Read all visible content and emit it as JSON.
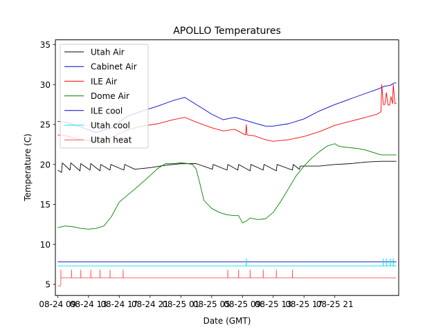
{
  "chart_data": {
    "type": "line",
    "title": "APOLLO Temperatures",
    "xlabel": "Date (GMT)",
    "ylabel": "Temperature (C)",
    "xlim": [
      -0.3,
      44.3
    ],
    "ylim": [
      3.6,
      35.6
    ],
    "grid": false,
    "legend_position": "top-left",
    "x_unit": "hours since 08-24 09:00",
    "x_ticks": [
      {
        "pos": 0,
        "label": "08-24 09"
      },
      {
        "pos": 4,
        "label": "08-24 13"
      },
      {
        "pos": 8,
        "label": "08-24 17"
      },
      {
        "pos": 12,
        "label": "08-24 21"
      },
      {
        "pos": 16,
        "label": "08-25 01"
      },
      {
        "pos": 20,
        "label": "08-25 05"
      },
      {
        "pos": 24,
        "label": "08-25 09"
      },
      {
        "pos": 28,
        "label": "08-25 13"
      },
      {
        "pos": 32,
        "label": "08-25 17"
      },
      {
        "pos": 36,
        "label": "08-25 21"
      }
    ],
    "y_ticks": [
      5,
      10,
      15,
      20,
      25,
      30,
      35
    ],
    "series": [
      {
        "name": "Utah Air",
        "color": "#000000",
        "x": [
          0,
          0.5,
          0.6,
          1.6,
          1.7,
          2.9,
          3.0,
          4.2,
          4.3,
          5.5,
          5.6,
          6.8,
          6.9,
          8.6,
          8.7,
          10,
          12,
          14,
          16,
          18,
          20.1,
          20.2,
          22,
          22.1,
          23.4,
          23.5,
          25,
          25.1,
          26.7,
          26.8,
          28.4,
          28.5,
          30.5,
          30.6,
          31.4,
          31.5,
          34,
          36,
          38,
          40,
          42,
          44
        ],
        "y": [
          19.3,
          19.0,
          20.2,
          19.3,
          20.2,
          19.2,
          20.1,
          19.3,
          20.1,
          19.2,
          20.0,
          19.3,
          20.0,
          19.3,
          20.0,
          19.4,
          19.6,
          19.9,
          20.1,
          20.1,
          19.4,
          20.0,
          19.3,
          20.0,
          19.3,
          20.0,
          19.2,
          20.0,
          19.3,
          20.0,
          19.2,
          20.0,
          19.3,
          20.0,
          19.4,
          19.8,
          19.8,
          20.0,
          20.1,
          20.3,
          20.4,
          20.4
        ]
      },
      {
        "name": "Cabinet Air",
        "color": "#0000cc",
        "x": [
          0,
          1,
          3,
          5,
          7,
          9,
          11,
          13,
          15,
          16.5,
          18,
          20,
          21.5,
          23,
          24.5,
          25.5,
          27,
          28,
          30,
          32,
          34,
          36,
          38,
          40,
          41.5,
          42.5,
          43.2,
          43.7,
          44
        ],
        "y": [
          25.4,
          25.3,
          24.7,
          24.0,
          24.6,
          26.0,
          26.7,
          27.3,
          28.0,
          28.4,
          27.5,
          26.3,
          25.6,
          25.9,
          25.5,
          25.2,
          24.8,
          24.8,
          25.1,
          25.7,
          26.7,
          27.5,
          28.2,
          28.9,
          29.4,
          29.8,
          29.9,
          30.2,
          30.2
        ]
      },
      {
        "name": "ILE Air",
        "color": "#ff0000",
        "x": [
          0,
          1,
          3,
          5,
          7,
          9,
          11,
          13,
          15,
          16.5,
          18,
          20,
          21.5,
          23,
          24.4,
          24.5,
          24.6,
          25.5,
          27,
          28,
          30,
          32,
          34,
          36,
          38,
          40,
          41.5,
          42.0,
          42.1,
          42.3,
          42.5,
          42.7,
          42.9,
          43.1,
          43.3,
          43.5,
          43.6,
          43.8,
          44
        ],
        "y": [
          23.7,
          23.6,
          23.1,
          22.9,
          23.4,
          24.3,
          24.8,
          25.1,
          25.6,
          25.9,
          25.3,
          24.6,
          24.2,
          24.4,
          23.7,
          25.0,
          23.7,
          23.6,
          23.1,
          22.9,
          23.1,
          23.5,
          24.1,
          24.9,
          25.4,
          25.9,
          26.3,
          26.6,
          30.0,
          27.5,
          27.5,
          29.0,
          27.5,
          27.4,
          28.5,
          27.6,
          30.0,
          27.6,
          27.7
        ]
      },
      {
        "name": "Dome Air",
        "color": "#008000",
        "x": [
          0,
          1,
          2,
          3,
          4,
          5,
          6,
          7,
          8,
          10,
          12,
          13,
          14,
          15,
          16,
          17,
          17.5,
          18,
          18.5,
          19,
          20,
          21,
          22,
          23,
          23.5,
          24,
          24.5,
          25,
          26,
          27,
          28,
          29,
          30,
          31,
          32,
          33,
          34,
          35,
          36,
          36.5,
          37,
          38,
          39,
          40,
          41,
          42,
          43,
          44
        ],
        "y": [
          12.1,
          12.3,
          12.2,
          12.0,
          11.9,
          12.0,
          12.3,
          13.5,
          15.3,
          16.9,
          18.6,
          19.5,
          20.1,
          20.1,
          20.2,
          20.1,
          20.0,
          19.4,
          17.5,
          15.5,
          14.5,
          14.0,
          13.7,
          13.6,
          13.6,
          12.7,
          12.9,
          13.3,
          13.1,
          13.2,
          14.0,
          15.4,
          17.0,
          18.6,
          19.8,
          20.8,
          21.6,
          22.3,
          22.6,
          22.3,
          22.2,
          22.1,
          22.0,
          21.8,
          21.5,
          21.2,
          21.2,
          21.2
        ]
      },
      {
        "name": "ILE cool",
        "color": "#0000cc",
        "x": [
          0,
          44
        ],
        "y": [
          7.8,
          7.8
        ]
      },
      {
        "name": "Utah cool",
        "color": "#00e5ee",
        "x": [
          0,
          24.49,
          24.5,
          24.51,
          24.52,
          42.29,
          42.3,
          42.31,
          42.32,
          42.69,
          42.7,
          42.71,
          42.72,
          43.19,
          43.2,
          43.21,
          43.22,
          43.59,
          43.6,
          43.61,
          43.62,
          44
        ],
        "y": [
          7.3,
          7.3,
          8.2,
          8.2,
          7.3,
          7.3,
          8.2,
          8.2,
          7.3,
          7.3,
          8.2,
          8.2,
          7.3,
          7.3,
          8.2,
          8.2,
          7.3,
          7.3,
          8.2,
          8.2,
          7.3,
          7.3
        ]
      },
      {
        "name": "Utah heat",
        "color": "#ff5555",
        "x": [
          0,
          0.4,
          0.41,
          0.42,
          0.43,
          1.79,
          1.8,
          1.81,
          1.82,
          2.99,
          3.0,
          3.01,
          3.02,
          4.29,
          4.3,
          4.31,
          4.32,
          5.49,
          5.5,
          5.51,
          5.52,
          6.79,
          6.8,
          6.81,
          6.82,
          8.49,
          8.5,
          8.51,
          8.52,
          22.09,
          22.1,
          22.11,
          22.12,
          23.49,
          23.5,
          23.51,
          23.52,
          24.99,
          25.0,
          25.01,
          25.02,
          26.69,
          26.7,
          26.71,
          26.72,
          28.39,
          28.4,
          28.41,
          28.42,
          30.49,
          30.5,
          30.51,
          30.52,
          44
        ],
        "y": [
          4.8,
          4.8,
          6.8,
          6.8,
          5.8,
          5.8,
          6.8,
          6.8,
          5.8,
          5.8,
          6.8,
          6.8,
          5.8,
          5.8,
          6.8,
          6.8,
          5.8,
          5.8,
          6.8,
          6.8,
          5.8,
          5.8,
          6.8,
          6.8,
          5.8,
          5.8,
          6.8,
          6.8,
          5.8,
          5.8,
          6.8,
          6.8,
          5.8,
          5.8,
          6.8,
          6.8,
          5.8,
          5.8,
          6.8,
          6.8,
          5.8,
          5.8,
          6.8,
          6.8,
          5.8,
          5.8,
          6.8,
          6.8,
          5.8,
          5.8,
          6.8,
          6.8,
          5.8,
          5.8
        ]
      }
    ]
  }
}
